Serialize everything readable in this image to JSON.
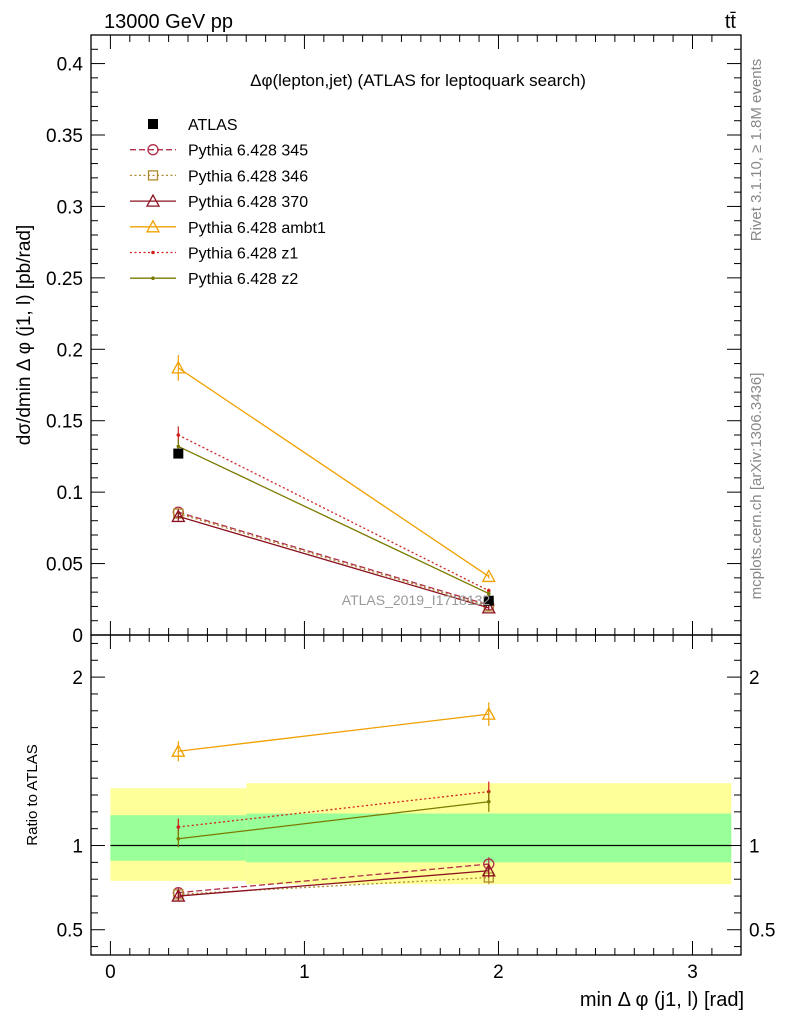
{
  "header": {
    "energy_label": "13000 GeV pp",
    "process_label": "tt̄"
  },
  "side_labels": {
    "rivet": "Rivet 3.1.10, ≥ 1.8M events",
    "mcplots": "mcplots.cern.ch [arXiv:1306.3436]"
  },
  "watermark": "ATLAS_2019_I1718132",
  "chart_data": [
    {
      "type": "line",
      "panel": "main",
      "title": "Δφ(lepton,jet) (ATLAS for leptoquark search)",
      "ylabel": "dσ/dmin Δ φ (j1, l) [pb/rad]",
      "xlim": [
        -0.1,
        3.25
      ],
      "ylim": [
        0,
        0.42
      ],
      "yticks": [
        0,
        0.05,
        0.1,
        0.15,
        0.2,
        0.25,
        0.3,
        0.35,
        0.4
      ],
      "ytick_labels": [
        "0",
        "0.05",
        "0.1",
        "0.15",
        "0.2",
        "0.25",
        "0.3",
        "0.35",
        "0.4"
      ],
      "legend_position": "top-left",
      "x": [
        0.35,
        1.95
      ],
      "data_series": {
        "name": "ATLAS",
        "values": [
          0.127,
          0.024
        ],
        "color": "#000000"
      },
      "series": [
        {
          "name": "Pythia 6.428 345",
          "values": [
            0.086,
            0.021
          ],
          "errors": [
            0.003,
            0.0015
          ],
          "color": "#b0304a",
          "dash": "dashed",
          "marker": "circle"
        },
        {
          "name": "Pythia 6.428 346",
          "values": [
            0.085,
            0.02
          ],
          "errors": [
            0.003,
            0.0015
          ],
          "color": "#b08a30",
          "dash": "dotted",
          "marker": "square"
        },
        {
          "name": "Pythia 6.428 370",
          "values": [
            0.083,
            0.019
          ],
          "errors": [
            0.003,
            0.0015
          ],
          "color": "#8b1020",
          "dash": "solid",
          "marker": "triangle"
        },
        {
          "name": "Pythia 6.428 ambt1",
          "values": [
            0.187,
            0.041
          ],
          "errors": [
            0.009,
            0.0015
          ],
          "color": "#f0a000",
          "dash": "solid",
          "marker": "triangle"
        },
        {
          "name": "Pythia 6.428 z1",
          "values": [
            0.14,
            0.031
          ],
          "errors": [
            0.006,
            0.0015
          ],
          "color": "#d02020",
          "dash": "dotted",
          "marker": "dot"
        },
        {
          "name": "Pythia 6.428 z2",
          "values": [
            0.132,
            0.029
          ],
          "errors": [
            0.005,
            0.0015
          ],
          "color": "#7a7a00",
          "dash": "solid",
          "marker": "dot"
        }
      ]
    },
    {
      "type": "line",
      "panel": "ratio",
      "ylabel": "Ratio to ATLAS",
      "xlabel": "min Δ φ (j1, l) [rad]",
      "xlim": [
        -0.1,
        3.25
      ],
      "ylim": [
        0.35,
        2.25
      ],
      "yticks": [
        0.5,
        1,
        2
      ],
      "ytick_labels": [
        "0.5",
        "1",
        "2"
      ],
      "xticks": [
        0,
        1,
        2,
        3
      ],
      "xtick_labels": [
        "0",
        "1",
        "2",
        "3"
      ],
      "bins": [
        [
          0.0,
          0.7
        ],
        [
          0.7,
          3.2
        ]
      ],
      "band_inner": [
        [
          0.91,
          1.18
        ],
        [
          0.9,
          1.19
        ]
      ],
      "band_outer": [
        [
          0.79,
          1.34
        ],
        [
          0.77,
          1.37
        ]
      ],
      "x": [
        0.35,
        1.95
      ],
      "series": [
        {
          "name": "Pythia 6.428 345",
          "values": [
            0.72,
            0.89
          ],
          "errors": [
            0.03,
            0.04
          ],
          "color": "#b0304a",
          "dash": "dashed",
          "marker": "circle"
        },
        {
          "name": "Pythia 6.428 346",
          "values": [
            0.71,
            0.81
          ],
          "errors": [
            0.03,
            0.04
          ],
          "color": "#b08a30",
          "dash": "dotted",
          "marker": "square"
        },
        {
          "name": "Pythia 6.428 370",
          "values": [
            0.7,
            0.85
          ],
          "errors": [
            0.03,
            0.04
          ],
          "color": "#8b1020",
          "dash": "solid",
          "marker": "triangle"
        },
        {
          "name": "Pythia 6.428 ambt1",
          "values": [
            1.56,
            1.78
          ],
          "errors": [
            0.06,
            0.07
          ],
          "color": "#f0a000",
          "dash": "solid",
          "marker": "triangle"
        },
        {
          "name": "Pythia 6.428 z1",
          "values": [
            1.11,
            1.32
          ],
          "errors": [
            0.05,
            0.06
          ],
          "color": "#d02020",
          "dash": "dotted",
          "marker": "dot"
        },
        {
          "name": "Pythia 6.428 z2",
          "values": [
            1.04,
            1.26
          ],
          "errors": [
            0.05,
            0.06
          ],
          "color": "#7a7a00",
          "dash": "solid",
          "marker": "dot"
        }
      ]
    }
  ]
}
